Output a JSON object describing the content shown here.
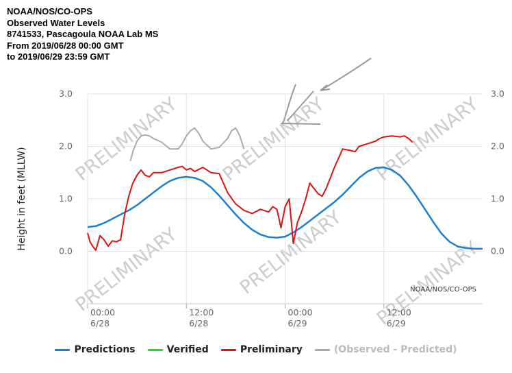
{
  "header": {
    "line1": "NOAA/NOS/CO-OPS",
    "line2": "Observed Water Levels",
    "line3": "8741533, Pascagoula NOAA Lab MS",
    "line4": "From 2019/06/28 00:00 GMT",
    "line5": "to 2019/06/29 23:59 GMT"
  },
  "credit": "NOAA/NOS/CO-OPS",
  "watermark": "PRELIMINARY",
  "colors": {
    "predictions": "#1a7fd4",
    "verified": "#22dd22",
    "preliminary": "#dd1111",
    "residual": "#aaaaaa",
    "grid": "#e2e2e2",
    "watermark": "#cccccc"
  },
  "chart_data": {
    "type": "line",
    "ylabel": "Height in feet (MLLW)",
    "ylim": [
      -1,
      3
    ],
    "y_ticks": [
      "3.0",
      "2.0",
      "1.0",
      "0.0"
    ],
    "xlim": [
      0,
      48
    ],
    "x_ticks": [
      {
        "hour": 0,
        "time": "00:00",
        "date": "6/28"
      },
      {
        "hour": 12,
        "time": "12:00",
        "date": "6/28"
      },
      {
        "hour": 24,
        "time": "00:00",
        "date": "6/29"
      },
      {
        "hour": 36,
        "time": "12:00",
        "date": "6/29"
      }
    ],
    "grid": true,
    "legend_position": "bottom",
    "series": [
      {
        "name": "Predictions",
        "color": "#1a7fd4",
        "x": [
          0,
          1,
          2,
          3,
          4,
          5,
          6,
          7,
          8,
          9,
          10,
          11,
          12,
          13,
          14,
          15,
          16,
          17,
          18,
          19,
          20,
          21,
          22,
          23,
          24,
          25,
          26,
          27,
          28,
          29,
          30,
          31,
          32,
          33,
          34,
          35,
          36,
          37,
          38,
          39,
          40,
          41,
          42,
          43,
          44,
          45,
          46,
          47,
          48
        ],
        "y": [
          0.46,
          0.48,
          0.54,
          0.62,
          0.7,
          0.78,
          0.88,
          1.0,
          1.12,
          1.24,
          1.34,
          1.4,
          1.42,
          1.4,
          1.34,
          1.22,
          1.06,
          0.88,
          0.7,
          0.54,
          0.41,
          0.32,
          0.27,
          0.26,
          0.28,
          0.36,
          0.46,
          0.58,
          0.7,
          0.82,
          0.94,
          1.08,
          1.24,
          1.4,
          1.52,
          1.59,
          1.6,
          1.55,
          1.44,
          1.26,
          1.04,
          0.8,
          0.56,
          0.34,
          0.18,
          0.09,
          0.06,
          0.05,
          0.05
        ]
      },
      {
        "name": "Verified",
        "color": "#22dd22",
        "x": [],
        "y": []
      },
      {
        "name": "Preliminary",
        "color": "#dd1111",
        "x": [
          0,
          0.3,
          0.6,
          1,
          1.5,
          2,
          2.5,
          3,
          3.5,
          4,
          4.5,
          5,
          5.5,
          6,
          6.5,
          7,
          7.5,
          8,
          9,
          10,
          11,
          11.5,
          12,
          12.5,
          13,
          14,
          15,
          16,
          17,
          18,
          19,
          20,
          21,
          22,
          22.5,
          23,
          23.5,
          24,
          24.5,
          25,
          25.5,
          26,
          26.5,
          27,
          27.5,
          28,
          28.5,
          29,
          29.5,
          30,
          31,
          32,
          32.5,
          33,
          34,
          35,
          35.5,
          36,
          37,
          38,
          38.5,
          39,
          39.5
        ],
        "y": [
          0.35,
          0.18,
          0.1,
          0.02,
          0.3,
          0.22,
          0.1,
          0.2,
          0.18,
          0.22,
          0.7,
          1.05,
          1.3,
          1.45,
          1.55,
          1.45,
          1.42,
          1.5,
          1.5,
          1.55,
          1.6,
          1.62,
          1.55,
          1.58,
          1.52,
          1.6,
          1.5,
          1.48,
          1.12,
          0.9,
          0.78,
          0.72,
          0.8,
          0.75,
          0.85,
          0.8,
          0.45,
          0.85,
          1.0,
          0.15,
          0.55,
          0.75,
          1.0,
          1.3,
          1.2,
          1.1,
          1.05,
          1.2,
          1.4,
          1.6,
          1.95,
          1.92,
          1.9,
          2.0,
          2.05,
          2.1,
          2.15,
          2.18,
          2.2,
          2.18,
          2.2,
          2.15,
          2.08
        ]
      },
      {
        "name": "(Observed - Predicted)",
        "color": "#aaaaaa",
        "x": [
          5.2,
          5.5,
          6,
          6.5,
          7,
          7.5,
          8,
          9,
          10,
          11,
          11.5,
          12,
          12.5,
          13,
          13.5,
          14,
          15,
          16,
          17,
          17.5,
          18,
          18.5,
          19
        ],
        "y": [
          1.72,
          1.9,
          2.1,
          2.2,
          2.22,
          2.2,
          2.15,
          2.08,
          1.95,
          1.95,
          2.05,
          2.2,
          2.3,
          2.35,
          2.25,
          2.1,
          1.95,
          1.98,
          2.15,
          2.3,
          2.35,
          2.2,
          1.95
        ]
      }
    ]
  }
}
